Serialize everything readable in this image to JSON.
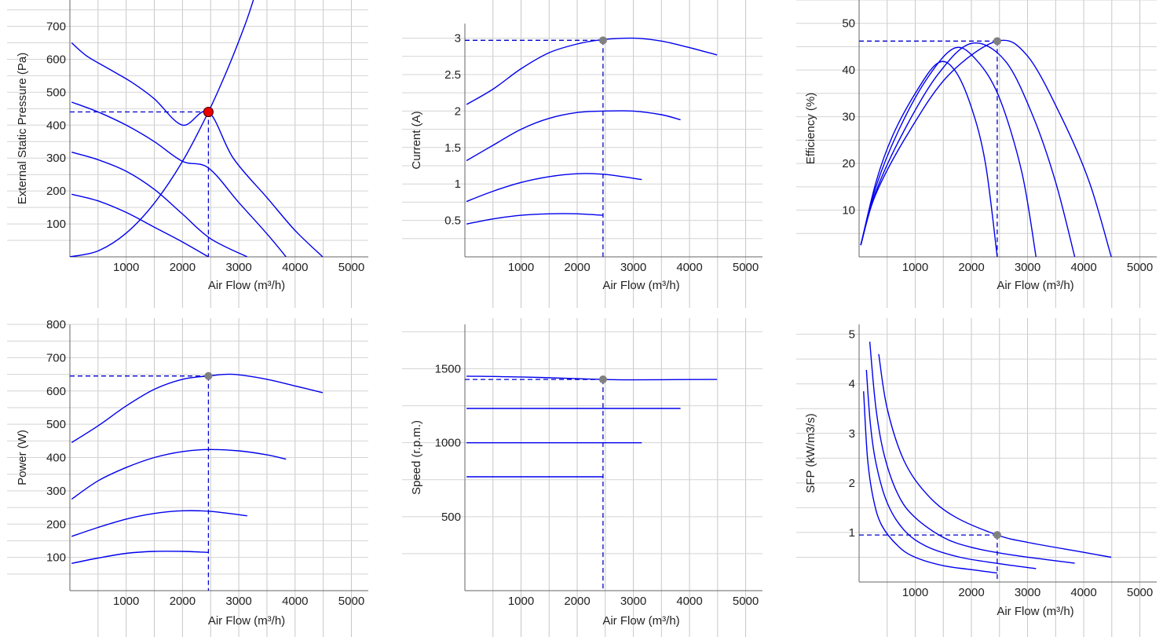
{
  "chart_data": [
    {
      "id": "pressure",
      "type": "line",
      "xlabel": "Air Flow (m³/h)",
      "ylabel": "External Static Pressure (Pa)",
      "xlim": [
        0,
        5300
      ],
      "ylim": [
        0,
        780
      ],
      "xticks": [
        1000,
        2000,
        3000,
        4000,
        5000
      ],
      "yticks": [
        100,
        200,
        300,
        400,
        500,
        600,
        700
      ],
      "grid": true,
      "series": [
        {
          "kind": "fan",
          "points": [
            [
              30,
              650
            ],
            [
              300,
              610
            ],
            [
              700,
              570
            ],
            [
              1100,
              530
            ],
            [
              1500,
              480
            ],
            [
              2000,
              400
            ],
            [
              2460,
              440
            ],
            [
              2900,
              300
            ],
            [
              3500,
              180
            ],
            [
              4000,
              80
            ],
            [
              4490,
              0
            ]
          ]
        },
        {
          "kind": "fan",
          "points": [
            [
              30,
              470
            ],
            [
              500,
              440
            ],
            [
              1000,
              400
            ],
            [
              1500,
              350
            ],
            [
              2000,
              290
            ],
            [
              2460,
              270
            ],
            [
              3000,
              165
            ],
            [
              3500,
              70
            ],
            [
              3840,
              0
            ]
          ]
        },
        {
          "kind": "fan",
          "points": [
            [
              30,
              318
            ],
            [
              500,
              295
            ],
            [
              1000,
              260
            ],
            [
              1500,
              205
            ],
            [
              2000,
              130
            ],
            [
              2500,
              55
            ],
            [
              3150,
              0
            ]
          ]
        },
        {
          "kind": "fan",
          "points": [
            [
              30,
              190
            ],
            [
              500,
              170
            ],
            [
              1000,
              135
            ],
            [
              1500,
              90
            ],
            [
              2000,
              45
            ],
            [
              2460,
              0
            ]
          ]
        },
        {
          "kind": "system",
          "points": [
            [
              0,
              0
            ],
            [
              500,
              18
            ],
            [
              1000,
              72
            ],
            [
              1500,
              163
            ],
            [
              2000,
              290
            ],
            [
              2460,
              440
            ],
            [
              2800,
              570
            ],
            [
              3100,
              700
            ],
            [
              3260,
              780
            ]
          ]
        }
      ],
      "operating_point": {
        "x": 2460,
        "y": 440,
        "color": "#ee0000"
      }
    },
    {
      "id": "current",
      "type": "line",
      "xlabel": "Air Flow (m³/h)",
      "ylabel": "Current (A)",
      "xlim": [
        0,
        5300
      ],
      "ylim": [
        0,
        3.2
      ],
      "xticks": [
        1000,
        2000,
        3000,
        4000,
        5000
      ],
      "yticks": [
        0.5,
        1,
        1.5,
        2,
        2.5,
        3
      ],
      "ytick_labels": [
        "0.5",
        "1",
        "1.5",
        "2",
        "2.5",
        "3"
      ],
      "grid": true,
      "series": [
        {
          "points": [
            [
              30,
              2.09
            ],
            [
              500,
              2.3
            ],
            [
              1000,
              2.58
            ],
            [
              1500,
              2.8
            ],
            [
              2000,
              2.92
            ],
            [
              2460,
              2.98
            ],
            [
              3000,
              3.0
            ],
            [
              3500,
              2.96
            ],
            [
              4000,
              2.87
            ],
            [
              4490,
              2.77
            ]
          ]
        },
        {
          "points": [
            [
              30,
              1.32
            ],
            [
              500,
              1.53
            ],
            [
              1000,
              1.75
            ],
            [
              1500,
              1.9
            ],
            [
              2000,
              1.98
            ],
            [
              2460,
              2.0
            ],
            [
              3000,
              2.0
            ],
            [
              3500,
              1.95
            ],
            [
              3840,
              1.88
            ]
          ]
        },
        {
          "points": [
            [
              30,
              0.76
            ],
            [
              500,
              0.9
            ],
            [
              1000,
              1.02
            ],
            [
              1500,
              1.1
            ],
            [
              2000,
              1.14
            ],
            [
              2500,
              1.13
            ],
            [
              3150,
              1.06
            ]
          ]
        },
        {
          "points": [
            [
              30,
              0.45
            ],
            [
              500,
              0.52
            ],
            [
              1000,
              0.57
            ],
            [
              1500,
              0.59
            ],
            [
              2000,
              0.59
            ],
            [
              2460,
              0.57
            ]
          ]
        }
      ],
      "operating_point": {
        "x": 2460,
        "y": 2.97,
        "color": "#808080"
      }
    },
    {
      "id": "efficiency",
      "type": "line",
      "xlabel": "Air Flow (m³/h)",
      "ylabel": "Efficiency (%)",
      "xlim": [
        0,
        5300
      ],
      "ylim": [
        0,
        55
      ],
      "xticks": [
        1000,
        2000,
        3000,
        4000,
        5000
      ],
      "yticks": [
        10,
        20,
        30,
        40,
        50
      ],
      "grid": true,
      "series": [
        {
          "points": [
            [
              30,
              2.5
            ],
            [
              300,
              16
            ],
            [
              600,
              26
            ],
            [
              1000,
              35
            ],
            [
              1400,
              41.5
            ],
            [
              1700,
              40
            ],
            [
              2000,
              32
            ],
            [
              2250,
              20
            ],
            [
              2460,
              0
            ]
          ]
        },
        {
          "points": [
            [
              30,
              2.5
            ],
            [
              300,
              15
            ],
            [
              700,
              27
            ],
            [
              1200,
              38
            ],
            [
              1700,
              44.7
            ],
            [
              2100,
              42
            ],
            [
              2500,
              34
            ],
            [
              2900,
              18
            ],
            [
              3150,
              0
            ]
          ]
        },
        {
          "points": [
            [
              30,
              2.5
            ],
            [
              300,
              14
            ],
            [
              800,
              27
            ],
            [
              1400,
              39
            ],
            [
              2000,
              45.7
            ],
            [
              2600,
              42
            ],
            [
              3100,
              30
            ],
            [
              3500,
              16
            ],
            [
              3840,
              0
            ]
          ]
        },
        {
          "points": [
            [
              30,
              2.5
            ],
            [
              300,
              13.5
            ],
            [
              900,
              27
            ],
            [
              1600,
              39
            ],
            [
              2460,
              46.2
            ],
            [
              3000,
              43
            ],
            [
              3600,
              30
            ],
            [
              4100,
              16
            ],
            [
              4490,
              0
            ]
          ]
        }
      ],
      "operating_point": {
        "x": 2460,
        "y": 46.2,
        "color": "#808080"
      }
    },
    {
      "id": "power",
      "type": "line",
      "xlabel": "Air Flow (m³/h)",
      "ylabel": "Power (W)",
      "xlim": [
        0,
        5300
      ],
      "ylim": [
        0,
        800
      ],
      "xticks": [
        1000,
        2000,
        3000,
        4000,
        5000
      ],
      "yticks": [
        100,
        200,
        300,
        400,
        500,
        600,
        700,
        800
      ],
      "grid": true,
      "series": [
        {
          "points": [
            [
              30,
              445
            ],
            [
              500,
              495
            ],
            [
              1000,
              555
            ],
            [
              1500,
              605
            ],
            [
              2000,
              635
            ],
            [
              2460,
              645
            ],
            [
              2900,
              650
            ],
            [
              3500,
              635
            ],
            [
              4000,
              615
            ],
            [
              4490,
              595
            ]
          ]
        },
        {
          "points": [
            [
              30,
              275
            ],
            [
              500,
              330
            ],
            [
              1000,
              370
            ],
            [
              1500,
              400
            ],
            [
              2000,
              418
            ],
            [
              2460,
              424
            ],
            [
              3000,
              420
            ],
            [
              3500,
              408
            ],
            [
              3840,
              395
            ]
          ]
        },
        {
          "points": [
            [
              30,
              163
            ],
            [
              500,
              190
            ],
            [
              1000,
              215
            ],
            [
              1500,
              232
            ],
            [
              2000,
              240
            ],
            [
              2500,
              238
            ],
            [
              3150,
              225
            ]
          ]
        },
        {
          "points": [
            [
              30,
              82
            ],
            [
              500,
              98
            ],
            [
              1000,
              112
            ],
            [
              1500,
              118
            ],
            [
              2000,
              118
            ],
            [
              2460,
              115
            ]
          ]
        }
      ],
      "operating_point": {
        "x": 2460,
        "y": 645,
        "color": "#808080"
      }
    },
    {
      "id": "speed",
      "type": "line",
      "xlabel": "Air Flow (m³/h)",
      "ylabel": "Speed (r.p.m.)",
      "xlim": [
        0,
        5300
      ],
      "ylim": [
        0,
        1800
      ],
      "xticks": [
        1000,
        2000,
        3000,
        4000,
        5000
      ],
      "yticks": [
        500,
        1000,
        1500
      ],
      "grid": true,
      "series": [
        {
          "points": [
            [
              30,
              1450
            ],
            [
              1000,
              1445
            ],
            [
              2000,
              1433
            ],
            [
              2460,
              1428
            ],
            [
              3000,
              1425
            ],
            [
              4000,
              1427
            ],
            [
              4490,
              1428
            ]
          ]
        },
        {
          "points": [
            [
              30,
              1232
            ],
            [
              3840,
              1232
            ]
          ]
        },
        {
          "points": [
            [
              30,
              1000
            ],
            [
              3150,
              1000
            ]
          ]
        },
        {
          "points": [
            [
              30,
              770
            ],
            [
              2460,
              770
            ]
          ]
        }
      ],
      "operating_point": {
        "x": 2460,
        "y": 1428,
        "color": "#808080"
      }
    },
    {
      "id": "sfp",
      "type": "line",
      "xlabel": "Air Flow (m³/h)",
      "ylabel": "SFP (kW/m3/s)",
      "xlim": [
        0,
        5300
      ],
      "ylim": [
        0,
        5.2
      ],
      "xticks": [
        1000,
        2000,
        3000,
        4000,
        5000
      ],
      "yticks": [
        1,
        2,
        3,
        4,
        5
      ],
      "grid": true,
      "series": [
        {
          "points": [
            [
              80,
              3.85
            ],
            [
              150,
              2.5
            ],
            [
              250,
              1.7
            ],
            [
              400,
              1.15
            ],
            [
              700,
              0.72
            ],
            [
              1000,
              0.5
            ],
            [
              1500,
              0.33
            ],
            [
              2000,
              0.25
            ],
            [
              2460,
              0.18
            ]
          ]
        },
        {
          "points": [
            [
              130,
              4.28
            ],
            [
              200,
              3.2
            ],
            [
              300,
              2.4
            ],
            [
              500,
              1.6
            ],
            [
              800,
              1.05
            ],
            [
              1200,
              0.72
            ],
            [
              1800,
              0.5
            ],
            [
              2500,
              0.37
            ],
            [
              3150,
              0.27
            ]
          ]
        },
        {
          "points": [
            [
              190,
              4.85
            ],
            [
              300,
              3.5
            ],
            [
              450,
              2.55
            ],
            [
              700,
              1.75
            ],
            [
              1000,
              1.3
            ],
            [
              1500,
              0.9
            ],
            [
              2000,
              0.7
            ],
            [
              2700,
              0.55
            ],
            [
              3840,
              0.38
            ]
          ]
        },
        {
          "points": [
            [
              350,
              4.6
            ],
            [
              500,
              3.5
            ],
            [
              800,
              2.45
            ],
            [
              1200,
              1.78
            ],
            [
              1700,
              1.32
            ],
            [
              2460,
              0.95
            ],
            [
              3000,
              0.8
            ],
            [
              4000,
              0.6
            ],
            [
              4490,
              0.5
            ]
          ]
        }
      ],
      "operating_point": {
        "x": 2460,
        "y": 0.95,
        "color": "#808080"
      }
    }
  ]
}
